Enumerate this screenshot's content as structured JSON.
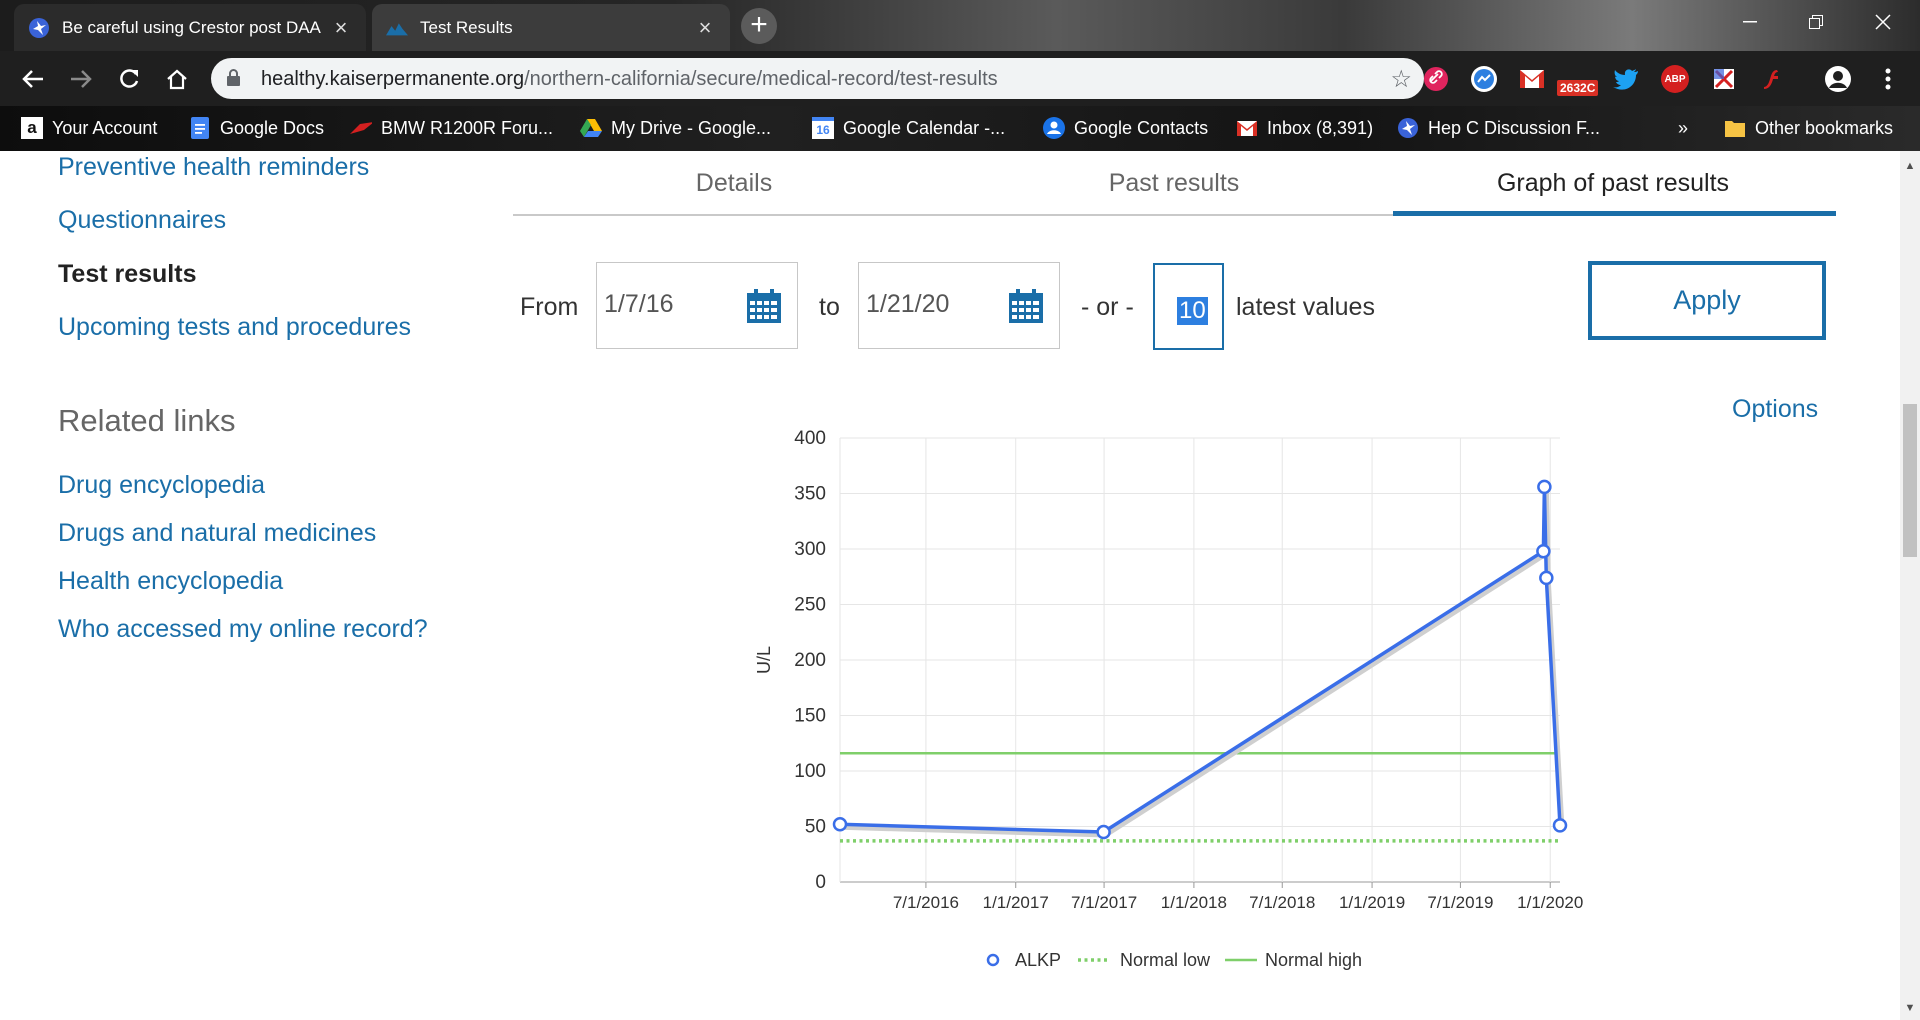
{
  "browser": {
    "tabs": [
      {
        "title": "Be careful using Crestor post DAA",
        "icon": "hepc-star-icon",
        "active": false
      },
      {
        "title": "Test Results",
        "icon": "kaiser-icon",
        "active": true
      }
    ],
    "url_host": "healthy.kaiserpermanente.org",
    "url_path": "/northern-california/secure/medical-record/test-results",
    "gmail_badge": "2632C",
    "extensions": [
      "link-icon",
      "messenger-icon",
      "gmail-icon",
      "twitter-icon",
      "adblock-icon",
      "ext-icon",
      "flash-icon",
      "profile-icon",
      "menu-icon"
    ],
    "bookmarks": [
      {
        "label": "Your Account",
        "icon": "amazon-icon"
      },
      {
        "label": "Google Docs",
        "icon": "docs-icon"
      },
      {
        "label": "BMW R1200R Foru...",
        "icon": "bmw-icon"
      },
      {
        "label": "My Drive - Google...",
        "icon": "drive-icon"
      },
      {
        "label": "Google Calendar -...",
        "icon": "calendar-icon",
        "badge": "16"
      },
      {
        "label": "Google Contacts",
        "icon": "contacts-icon"
      },
      {
        "label": "Inbox (8,391)",
        "icon": "gmail-icon"
      },
      {
        "label": "Hep C Discussion F...",
        "icon": "hepc-icon"
      }
    ],
    "more_bookmarks": "»",
    "other_bookmarks": "Other bookmarks"
  },
  "leftnav": {
    "items": [
      {
        "label": "Preventive health reminders",
        "current": false
      },
      {
        "label": "Questionnaires",
        "current": false
      },
      {
        "label": "Test results",
        "current": true
      },
      {
        "label": "Upcoming tests and procedures",
        "current": false
      }
    ],
    "related_heading": "Related links",
    "related": [
      {
        "label": "Drug encyclopedia"
      },
      {
        "label": "Drugs and natural medicines"
      },
      {
        "label": "Health encyclopedia"
      },
      {
        "label": "Who accessed my online record?"
      }
    ]
  },
  "subtabs": [
    {
      "label": "Details",
      "active": false
    },
    {
      "label": "Past results",
      "active": false
    },
    {
      "label": "Graph of past results",
      "active": true
    }
  ],
  "filter": {
    "from_label": "From",
    "from_value": "1/7/16",
    "to_label": "to",
    "to_value": "1/21/20",
    "or_label": "- or -",
    "count_value": "10",
    "latest_label": "latest values",
    "apply_label": "Apply"
  },
  "options_label": "Options",
  "colors": {
    "link": "#1a6ea8",
    "series": "#3a6ee8",
    "normal": "#7fcf6a"
  },
  "chart_data": {
    "type": "line",
    "ylabel": "U/L",
    "ylim": [
      0,
      400
    ],
    "yticks": [
      0,
      50,
      100,
      150,
      200,
      250,
      300,
      350,
      400
    ],
    "xlabels": [
      "7/1/2016",
      "1/1/2017",
      "7/1/2017",
      "1/1/2018",
      "7/1/2018",
      "1/1/2019",
      "7/1/2019",
      "1/1/2020"
    ],
    "series": [
      {
        "name": "ALKP",
        "points": [
          {
            "x": "2016-01-07",
            "y": 52
          },
          {
            "x": "2017-06-30",
            "y": 45
          },
          {
            "x": "2019-12-18",
            "y": 298
          },
          {
            "x": "2019-12-20",
            "y": 356
          },
          {
            "x": "2019-12-24",
            "y": 274
          },
          {
            "x": "2020-01-21",
            "y": 51
          }
        ]
      },
      {
        "name": "Normal low",
        "value": 37,
        "style": "dotted"
      },
      {
        "name": "Normal high",
        "value": 116,
        "style": "solid"
      }
    ],
    "legend_position": "bottom"
  }
}
